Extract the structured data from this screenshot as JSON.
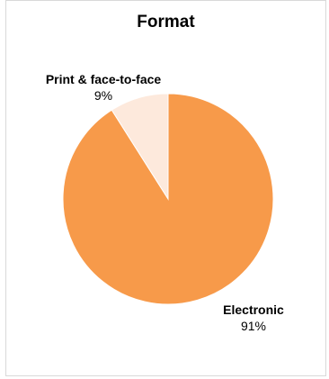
{
  "chart_data": {
    "type": "pie",
    "title": "Format",
    "categories": [
      "Electronic",
      "Print & face-to-face"
    ],
    "values": [
      91,
      9
    ],
    "labels": [
      "91%",
      "9%"
    ],
    "colors": [
      "#f79a4a",
      "#fde9dc"
    ],
    "start": "12 o'clock",
    "direction": "clockwise",
    "legend": "none"
  }
}
